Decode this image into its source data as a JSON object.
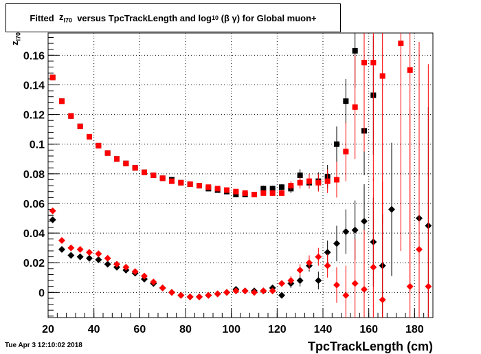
{
  "title": {
    "prefix": "Fitted",
    "var_main": "z",
    "var_sub": "I70",
    "middle": "versus TpcTrackLength and log",
    "log_sub": "10",
    "suffix": "(β γ) for Global muon+"
  },
  "footer": {
    "date": "Tue Apr  3 12:10:02 2018"
  },
  "colors": {
    "series_black": "#000000",
    "series_red": "#ff0000",
    "grid": "#000000"
  },
  "chart_data": {
    "type": "scatter",
    "xlabel": "TpcTrackLength (cm)",
    "ylabel_main": "z",
    "ylabel_sub": "I70",
    "xlim": [
      20,
      188
    ],
    "ylim": [
      -0.017,
      0.175
    ],
    "x_ticks": [
      20,
      40,
      60,
      80,
      100,
      120,
      140,
      160,
      180
    ],
    "y_ticks": [
      0,
      0.02,
      0.04,
      0.06,
      0.08,
      0.1,
      0.12,
      0.14,
      0.16
    ],
    "y_tick_labels": [
      "0",
      "0.02",
      "0.04",
      "0.06",
      "0.08",
      "0.1",
      "0.12",
      "0.14",
      "0.16"
    ],
    "grid": true,
    "series": [
      {
        "color": "black",
        "marker": "square",
        "points": [
          [
            22,
            0.145,
            0.001
          ],
          [
            26,
            0.129,
            0.001
          ],
          [
            30,
            0.119,
            0.001
          ],
          [
            34,
            0.112,
            0.001
          ],
          [
            38,
            0.105,
            0.001
          ],
          [
            42,
            0.099,
            0.001
          ],
          [
            46,
            0.094,
            0.001
          ],
          [
            50,
            0.09,
            0.001
          ],
          [
            54,
            0.087,
            0.001
          ],
          [
            58,
            0.084,
            0.001
          ],
          [
            62,
            0.081,
            0.001
          ],
          [
            66,
            0.079,
            0.001
          ],
          [
            70,
            0.077,
            0.001
          ],
          [
            74,
            0.076,
            0.001
          ],
          [
            78,
            0.074,
            0.001
          ],
          [
            82,
            0.073,
            0.001
          ],
          [
            86,
            0.072,
            0.001
          ],
          [
            90,
            0.07,
            0.001
          ],
          [
            94,
            0.069,
            0.001
          ],
          [
            98,
            0.068,
            0.001
          ],
          [
            102,
            0.066,
            0.001
          ],
          [
            106,
            0.066,
            0.001
          ],
          [
            110,
            0.066,
            0.001
          ],
          [
            114,
            0.07,
            0.002
          ],
          [
            118,
            0.07,
            0.002
          ],
          [
            122,
            0.071,
            0.002
          ],
          [
            126,
            0.07,
            0.003
          ],
          [
            130,
            0.079,
            0.004
          ],
          [
            134,
            0.074,
            0.004
          ],
          [
            138,
            0.075,
            0.006
          ],
          [
            142,
            0.078,
            0.008
          ],
          [
            146,
            0.1,
            0.012
          ],
          [
            150,
            0.129,
            0.015
          ],
          [
            154,
            0.163,
            0.025
          ],
          [
            158,
            0.109,
            0.03
          ],
          [
            162,
            0.133,
            0.04
          ]
        ]
      },
      {
        "color": "red",
        "marker": "square",
        "points": [
          [
            22,
            0.145,
            0.001
          ],
          [
            26,
            0.129,
            0.001
          ],
          [
            30,
            0.119,
            0.001
          ],
          [
            34,
            0.112,
            0.001
          ],
          [
            38,
            0.105,
            0.001
          ],
          [
            42,
            0.099,
            0.001
          ],
          [
            46,
            0.094,
            0.001
          ],
          [
            50,
            0.09,
            0.001
          ],
          [
            54,
            0.087,
            0.001
          ],
          [
            58,
            0.084,
            0.001
          ],
          [
            62,
            0.081,
            0.001
          ],
          [
            66,
            0.079,
            0.001
          ],
          [
            70,
            0.077,
            0.001
          ],
          [
            74,
            0.075,
            0.001
          ],
          [
            78,
            0.074,
            0.001
          ],
          [
            82,
            0.073,
            0.001
          ],
          [
            86,
            0.072,
            0.001
          ],
          [
            90,
            0.071,
            0.001
          ],
          [
            94,
            0.07,
            0.001
          ],
          [
            98,
            0.069,
            0.001
          ],
          [
            102,
            0.068,
            0.001
          ],
          [
            106,
            0.067,
            0.001
          ],
          [
            110,
            0.066,
            0.001
          ],
          [
            114,
            0.067,
            0.001
          ],
          [
            118,
            0.067,
            0.002
          ],
          [
            122,
            0.067,
            0.002
          ],
          [
            126,
            0.072,
            0.003
          ],
          [
            130,
            0.074,
            0.004
          ],
          [
            134,
            0.075,
            0.005
          ],
          [
            138,
            0.074,
            0.006
          ],
          [
            142,
            0.075,
            0.008
          ],
          [
            146,
            0.076,
            0.012
          ],
          [
            150,
            0.095,
            0.02
          ],
          [
            154,
            0.125,
            0.035
          ],
          [
            158,
            0.155,
            0.06
          ],
          [
            162,
            0.155,
            0.08
          ],
          [
            166,
            0.146,
            0.1
          ],
          [
            174,
            0.168,
            0.14
          ],
          [
            178,
            0.15,
            0.15
          ]
        ]
      },
      {
        "color": "black",
        "marker": "diamond",
        "points": [
          [
            22,
            0.049,
            0.001
          ],
          [
            26,
            0.029,
            0.001
          ],
          [
            30,
            0.025,
            0.001
          ],
          [
            34,
            0.024,
            0.001
          ],
          [
            38,
            0.023,
            0.001
          ],
          [
            42,
            0.022,
            0.001
          ],
          [
            46,
            0.019,
            0.001
          ],
          [
            50,
            0.017,
            0.001
          ],
          [
            54,
            0.015,
            0.001
          ],
          [
            58,
            0.013,
            0.001
          ],
          [
            62,
            0.009,
            0.001
          ],
          [
            66,
            0.006,
            0.001
          ],
          [
            70,
            0.003,
            0.001
          ],
          [
            74,
            0.0,
            0.001
          ],
          [
            78,
            -0.002,
            0.001
          ],
          [
            82,
            -0.003,
            0.001
          ],
          [
            86,
            -0.003,
            0.001
          ],
          [
            90,
            -0.002,
            0.001
          ],
          [
            94,
            -0.001,
            0.001
          ],
          [
            98,
            0.0,
            0.001
          ],
          [
            102,
            0.002,
            0.001
          ],
          [
            106,
            0.001,
            0.001
          ],
          [
            110,
            0.001,
            0.001
          ],
          [
            114,
            0.001,
            0.002
          ],
          [
            118,
            0.003,
            0.002
          ],
          [
            122,
            -0.002,
            0.002
          ],
          [
            126,
            0.006,
            0.003
          ],
          [
            130,
            0.008,
            0.004
          ],
          [
            134,
            0.018,
            0.004
          ],
          [
            138,
            0.008,
            0.006
          ],
          [
            142,
            0.027,
            0.008
          ],
          [
            146,
            0.033,
            0.012
          ],
          [
            150,
            0.041,
            0.015
          ],
          [
            154,
            0.042,
            0.02
          ],
          [
            158,
            0.048,
            0.025
          ],
          [
            162,
            0.034,
            0.03
          ],
          [
            166,
            0.018,
            0.035
          ],
          [
            170,
            0.056,
            0.045
          ],
          [
            182,
            0.05,
            0.07
          ],
          [
            186,
            0.045,
            0.08
          ]
        ]
      },
      {
        "color": "red",
        "marker": "diamond",
        "points": [
          [
            22,
            0.055,
            0.001
          ],
          [
            26,
            0.035,
            0.001
          ],
          [
            30,
            0.03,
            0.001
          ],
          [
            34,
            0.029,
            0.001
          ],
          [
            38,
            0.027,
            0.001
          ],
          [
            42,
            0.026,
            0.001
          ],
          [
            46,
            0.023,
            0.001
          ],
          [
            50,
            0.019,
            0.001
          ],
          [
            54,
            0.017,
            0.001
          ],
          [
            58,
            0.014,
            0.001
          ],
          [
            62,
            0.011,
            0.001
          ],
          [
            66,
            0.007,
            0.001
          ],
          [
            70,
            0.003,
            0.001
          ],
          [
            74,
            0.0,
            0.001
          ],
          [
            78,
            -0.002,
            0.001
          ],
          [
            82,
            -0.003,
            0.001
          ],
          [
            86,
            -0.003,
            0.001
          ],
          [
            90,
            -0.002,
            0.001
          ],
          [
            94,
            -0.001,
            0.001
          ],
          [
            98,
            0.0,
            0.001
          ],
          [
            102,
            0.001,
            0.001
          ],
          [
            106,
            0.001,
            0.001
          ],
          [
            110,
            0.0,
            0.001
          ],
          [
            114,
            0.001,
            0.002
          ],
          [
            118,
            0.001,
            0.002
          ],
          [
            122,
            0.006,
            0.002
          ],
          [
            126,
            0.008,
            0.003
          ],
          [
            130,
            0.015,
            0.004
          ],
          [
            134,
            0.02,
            0.005
          ],
          [
            138,
            0.024,
            0.006
          ],
          [
            142,
            0.018,
            0.008
          ],
          [
            146,
            0.005,
            0.012
          ],
          [
            150,
            -0.002,
            0.02
          ],
          [
            154,
            0.006,
            0.03
          ],
          [
            158,
            0.002,
            0.04
          ],
          [
            162,
            0.017,
            0.06
          ],
          [
            166,
            -0.005,
            0.08
          ],
          [
            178,
            0.004,
            0.12
          ],
          [
            182,
            0.029,
            0.14
          ],
          [
            186,
            0.004,
            0.15
          ]
        ]
      }
    ]
  }
}
